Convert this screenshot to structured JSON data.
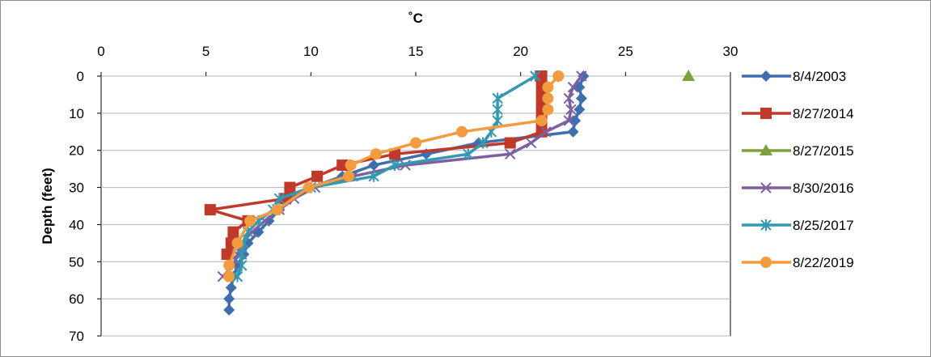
{
  "chart_data": {
    "type": "line",
    "title": "",
    "xlabel": "˚C",
    "ylabel": "Depth (feet)",
    "xlim": [
      0,
      30
    ],
    "ylim": [
      0,
      70
    ],
    "x_axis_position": "top",
    "y_axis_inverted": true,
    "xticks": [
      "0",
      "5",
      "10",
      "15",
      "20",
      "25",
      "30"
    ],
    "yticks": [
      "0",
      "10",
      "20",
      "30",
      "40",
      "50",
      "60",
      "70"
    ],
    "grid": "horizontal",
    "legend_position": "right",
    "series": [
      {
        "name": "8/4/2003",
        "color": "#3F6EAD",
        "marker": "diamond",
        "points": [
          [
            23.0,
            0
          ],
          [
            22.8,
            3
          ],
          [
            22.9,
            6
          ],
          [
            22.8,
            9
          ],
          [
            22.6,
            12
          ],
          [
            22.5,
            15
          ],
          [
            18.0,
            18
          ],
          [
            15.5,
            21
          ],
          [
            13.0,
            24
          ],
          [
            11.5,
            27
          ],
          [
            10.0,
            30
          ],
          [
            9.0,
            33
          ],
          [
            8.5,
            36
          ],
          [
            8.0,
            39
          ],
          [
            7.5,
            42
          ],
          [
            7.0,
            45
          ],
          [
            6.8,
            48
          ],
          [
            6.5,
            51
          ],
          [
            6.3,
            54
          ],
          [
            6.2,
            57
          ],
          [
            6.1,
            60
          ],
          [
            6.1,
            63
          ]
        ]
      },
      {
        "name": "8/27/2014",
        "color": "#C0392B",
        "marker": "square",
        "points": [
          [
            21.0,
            0
          ],
          [
            21.0,
            3
          ],
          [
            21.0,
            6
          ],
          [
            21.0,
            9
          ],
          [
            21.0,
            12
          ],
          [
            21.0,
            15
          ],
          [
            19.5,
            18
          ],
          [
            14.0,
            21
          ],
          [
            11.5,
            24
          ],
          [
            10.3,
            27
          ],
          [
            9.0,
            30
          ],
          [
            8.8,
            33
          ],
          [
            5.2,
            36
          ],
          [
            7.0,
            39
          ],
          [
            6.3,
            42
          ],
          [
            6.2,
            45
          ],
          [
            6.0,
            48
          ]
        ]
      },
      {
        "name": "8/27/2015",
        "color": "#7CA03C",
        "marker": "triangle",
        "points": [
          [
            28.0,
            0
          ]
        ]
      },
      {
        "name": "8/30/2016",
        "color": "#7E60A0",
        "marker": "x",
        "points": [
          [
            22.9,
            0
          ],
          [
            22.5,
            3
          ],
          [
            22.3,
            6
          ],
          [
            22.4,
            9
          ],
          [
            22.3,
            12
          ],
          [
            21.2,
            15
          ],
          [
            20.5,
            18
          ],
          [
            19.5,
            21
          ],
          [
            14.5,
            24
          ],
          [
            12.0,
            27
          ],
          [
            10.2,
            30
          ],
          [
            9.2,
            33
          ],
          [
            8.5,
            36
          ],
          [
            7.8,
            39
          ],
          [
            7.2,
            42
          ],
          [
            6.7,
            45
          ],
          [
            6.5,
            48
          ],
          [
            6.3,
            51
          ],
          [
            5.8,
            54
          ]
        ]
      },
      {
        "name": "8/25/2017",
        "color": "#3498B0",
        "marker": "star",
        "points": [
          [
            20.7,
            0
          ],
          [
            18.9,
            6
          ],
          [
            18.9,
            9
          ],
          [
            18.9,
            12
          ],
          [
            18.6,
            15
          ],
          [
            18.2,
            18
          ],
          [
            17.5,
            21
          ],
          [
            14.0,
            24
          ],
          [
            13.0,
            27
          ],
          [
            10.0,
            30
          ],
          [
            8.5,
            33
          ],
          [
            8.2,
            36
          ],
          [
            7.5,
            39
          ],
          [
            7.0,
            42
          ],
          [
            6.8,
            45
          ],
          [
            6.7,
            48
          ],
          [
            6.7,
            51
          ],
          [
            6.5,
            54
          ]
        ]
      },
      {
        "name": "8/22/2019",
        "color": "#F39C3F",
        "marker": "circle",
        "points": [
          [
            21.8,
            0
          ],
          [
            21.3,
            3
          ],
          [
            21.3,
            6
          ],
          [
            21.3,
            9
          ],
          [
            21.0,
            12
          ],
          [
            17.2,
            15
          ],
          [
            15.0,
            18
          ],
          [
            13.1,
            21
          ],
          [
            11.9,
            24
          ],
          [
            11.8,
            27
          ],
          [
            9.9,
            30
          ],
          [
            8.4,
            36
          ],
          [
            7.1,
            39
          ],
          [
            6.5,
            45
          ],
          [
            6.1,
            51
          ],
          [
            6.1,
            54
          ]
        ]
      }
    ]
  }
}
